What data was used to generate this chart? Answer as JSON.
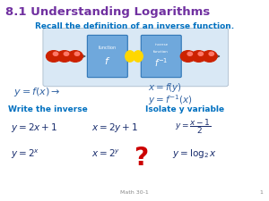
{
  "title": "8.1 Understanding Logarithms",
  "title_color": "#7030A0",
  "subtitle": "Recall the definition of an inverse function.",
  "subtitle_color": "#0070C0",
  "bg_color": "#FFFFFF",
  "write_inverse_label": "Write the inverse",
  "isolate_label": "Isolate y variable",
  "label_color": "#0070C0",
  "footer": "Math 30-1",
  "footer_color": "#888888",
  "page_num": "1",
  "eq_color_dark": "#1F3D99",
  "eq_color_blue": "#3465A4",
  "apple_color": "#CC2200",
  "apple_shine": "#FF7766",
  "lemon_color": "#FFD700",
  "box_face": "#6FA8DC",
  "box_edge": "#2E75B6",
  "diagram_bg": "#D9E8F5",
  "diagram_edge": "#AABBCC",
  "arrow_color": "#555555",
  "qmark_color": "#CC0000"
}
